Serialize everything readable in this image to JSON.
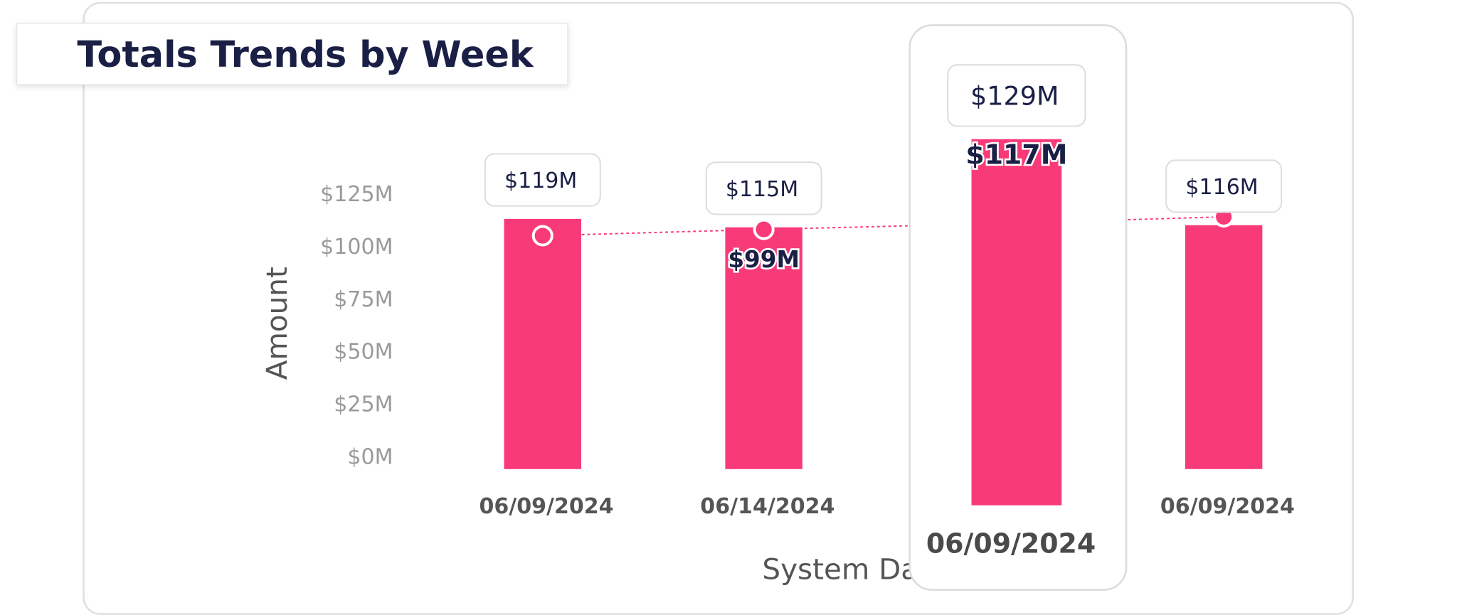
{
  "chart_data": {
    "type": "bar",
    "title": "Totals Trends by Week",
    "x_label": "System Date",
    "y_label": "Amount",
    "categories": [
      "06/09/2024",
      "06/14/2024",
      "06/09/2024",
      "06/09/2024"
    ],
    "ylim": [
      0,
      125
    ],
    "yticks": [
      {
        "value": 0,
        "label": "$0M"
      },
      {
        "value": 25,
        "label": "$25M"
      },
      {
        "value": 50,
        "label": "$50M"
      },
      {
        "value": 75,
        "label": "$75M"
      },
      {
        "value": 100,
        "label": "$100M"
      },
      {
        "value": 125,
        "label": "$125M"
      }
    ],
    "highlight": 2,
    "series": [
      {
        "type": "bar",
        "color": "#f93a78",
        "values": [
          119,
          115,
          129,
          116
        ],
        "value_labels": [
          "$119M",
          "$115M",
          "$129M",
          "$116M"
        ]
      },
      {
        "type": "line",
        "color": "#f93a78",
        "values": [
          111,
          114,
          117,
          120
        ]
      },
      {
        "type": "label",
        "values": [
          null,
          99,
          117,
          null
        ],
        "value_labels": [
          null,
          "$99M",
          "$117M",
          null
        ]
      }
    ]
  }
}
